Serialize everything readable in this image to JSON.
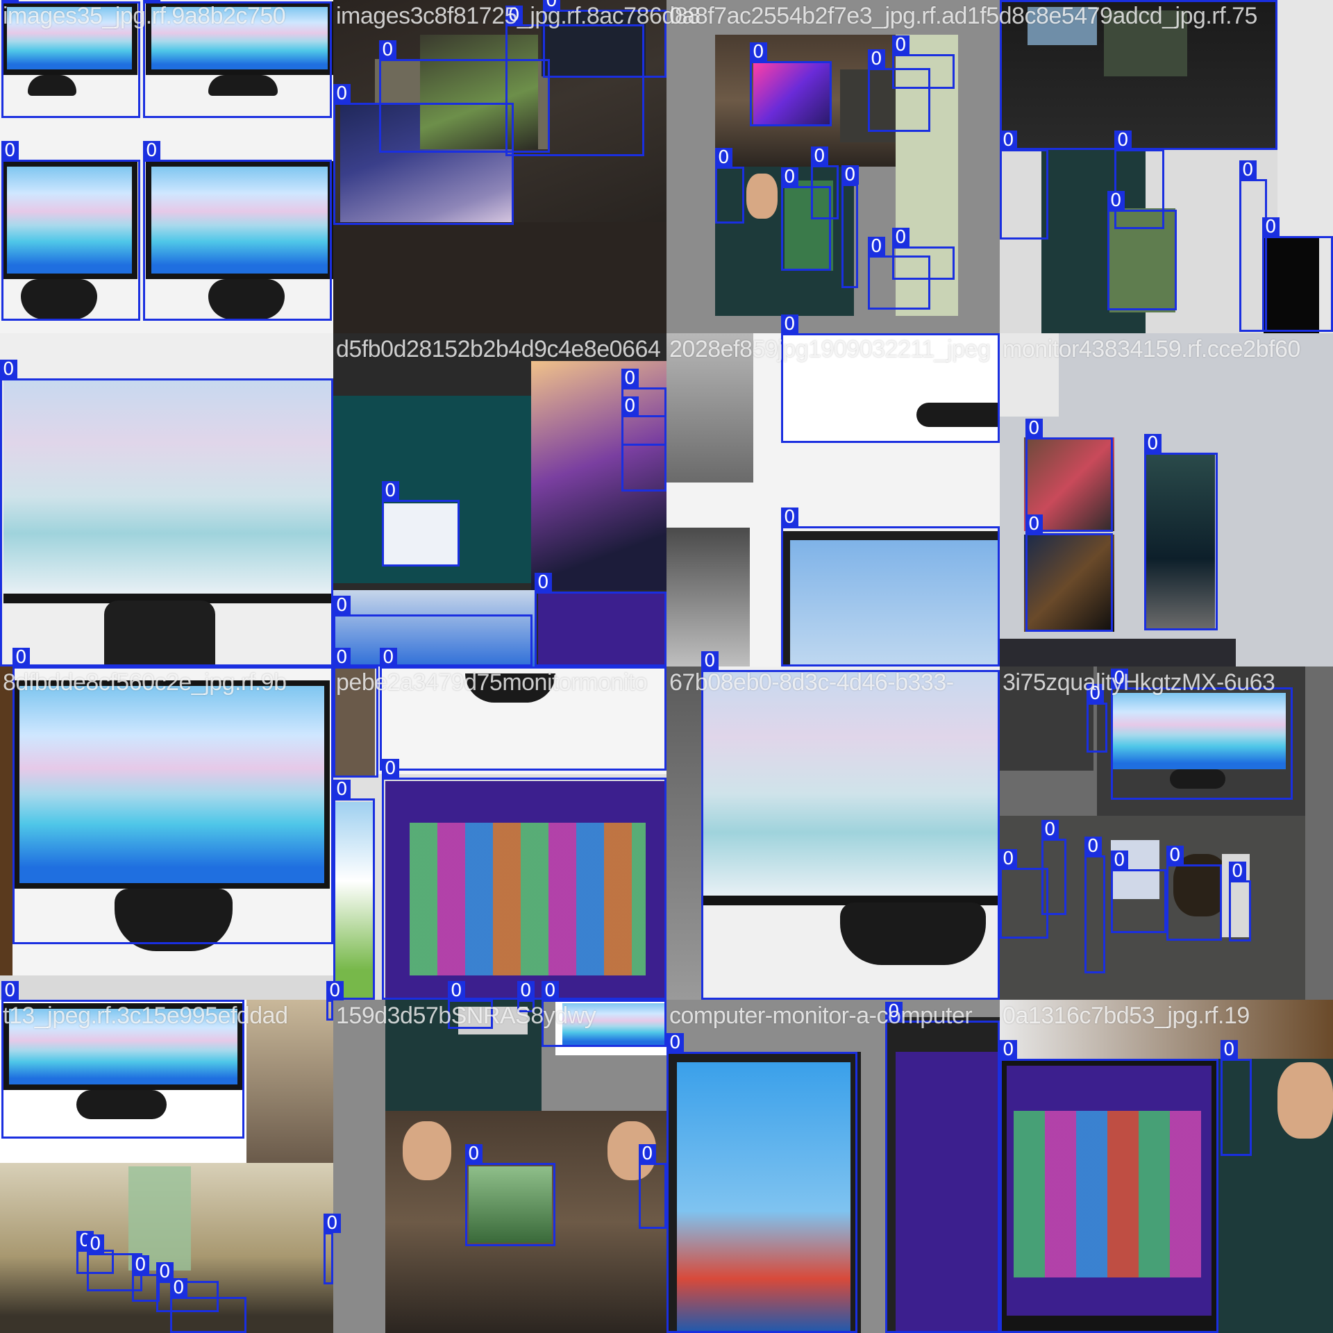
{
  "tiles": [
    {
      "name": "images35_jpg.rf.9a8b2c750",
      "box_label": "0"
    },
    {
      "name": "images3c8f81725_jpg.rf.8ac786d88",
      "box_label": "0"
    },
    {
      "name": "0a8f7ac2554b2f7e3_jpg.rf.ad1f5d8c8e5479adcd_jpg.rf.75",
      "box_label": "0"
    },
    {
      "name": "",
      "box_label": "0"
    },
    {
      "name": "",
      "box_label": "0"
    },
    {
      "name": "d5fb0d28152b2b4d9c4e8e0664",
      "box_label": "0"
    },
    {
      "name": "2028ef859jpg1909032211_jpeg",
      "box_label": "0"
    },
    {
      "name": "monitor43834159.rf.cce2bf60",
      "box_label": "0"
    },
    {
      "name": "8dfbdde8cf560c2e_jpg.rf.9b",
      "box_label": "0"
    },
    {
      "name": "pebe2a3479d75monitormonito",
      "box_label": "0"
    },
    {
      "name": "67b08eb0-8d3c-4d46-b333-",
      "box_label": "0"
    },
    {
      "name": "3i75zqualityHkgtzMX-6u63",
      "box_label": "0"
    },
    {
      "name": "t13_jpeg.rf.3c15e995efddad",
      "box_label": "0"
    },
    {
      "name": "159d3d57bSNRAS8ydwy",
      "box_label": "0"
    },
    {
      "name": "computer-monitor-a-computer",
      "box_label": "0"
    },
    {
      "name": "0a1316c7bd53_jpg.rf.19",
      "box_label": "0"
    }
  ],
  "class_label": "0",
  "colors": {
    "box": "#1a2fe0",
    "label_text": "#ffffff"
  }
}
